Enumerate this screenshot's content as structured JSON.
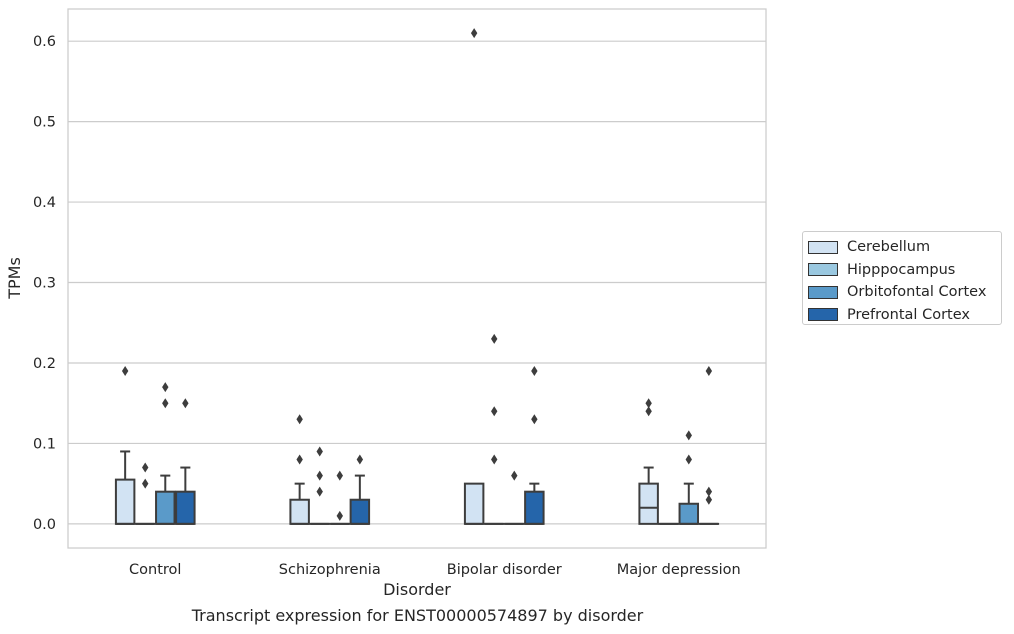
{
  "chart_data": {
    "type": "boxplot",
    "xlabel": "Disorder",
    "ylabel": "TPMs",
    "categories": [
      "Control",
      "Schizophrenia",
      "Bipolar disorder",
      "Major depression"
    ],
    "ylim": [
      -0.03,
      0.64
    ],
    "yticks": [
      0.0,
      0.1,
      0.2,
      0.3,
      0.4,
      0.5,
      0.6
    ],
    "ytick_labels": [
      "0.0",
      "0.1",
      "0.2",
      "0.3",
      "0.4",
      "0.5",
      "0.6"
    ],
    "grid": "horizontal",
    "legend_position": "right",
    "series": [
      {
        "name": "Cerebellum",
        "color": "#d2e3f3",
        "boxes": [
          {
            "min": 0,
            "q1": 0,
            "median": 0,
            "q3": 0.055,
            "max": 0.09,
            "outliers": [
              0.19
            ]
          },
          {
            "min": 0,
            "q1": 0,
            "median": 0,
            "q3": 0.03,
            "max": 0.05,
            "outliers": [
              0.08,
              0.13
            ]
          },
          {
            "min": 0,
            "q1": 0,
            "median": 0,
            "q3": 0.05,
            "max": 0.05,
            "outliers": [
              0.61
            ]
          },
          {
            "min": 0,
            "q1": 0,
            "median": 0.02,
            "q3": 0.05,
            "max": 0.07,
            "outliers": [
              0.14,
              0.15
            ]
          }
        ]
      },
      {
        "name": "Hipppocampus",
        "color": "#9ac8e0",
        "boxes": [
          {
            "min": 0,
            "q1": 0,
            "median": 0,
            "q3": 0,
            "max": 0,
            "outliers": [
              0.05,
              0.07
            ]
          },
          {
            "min": 0,
            "q1": 0,
            "median": 0,
            "q3": 0,
            "max": 0,
            "outliers": [
              0.04,
              0.06,
              0.09
            ]
          },
          {
            "min": 0,
            "q1": 0,
            "median": 0,
            "q3": 0,
            "max": 0,
            "outliers": [
              0.08,
              0.14,
              0.23
            ]
          },
          {
            "min": 0,
            "q1": 0,
            "median": 0,
            "q3": 0,
            "max": 0,
            "outliers": []
          }
        ]
      },
      {
        "name": "Orbitofontal Cortex",
        "color": "#5a9ac9",
        "boxes": [
          {
            "min": 0,
            "q1": 0,
            "median": 0,
            "q3": 0.04,
            "max": 0.06,
            "outliers": [
              0.15,
              0.17
            ]
          },
          {
            "min": 0,
            "q1": 0,
            "median": 0,
            "q3": 0,
            "max": 0,
            "outliers": [
              0.01,
              0.06
            ]
          },
          {
            "min": 0,
            "q1": 0,
            "median": 0,
            "q3": 0,
            "max": 0,
            "outliers": [
              0.06
            ]
          },
          {
            "min": 0,
            "q1": 0,
            "median": 0,
            "q3": 0.025,
            "max": 0.05,
            "outliers": [
              0.08,
              0.11
            ]
          }
        ]
      },
      {
        "name": "Prefrontal Cortex",
        "color": "#2565aa",
        "boxes": [
          {
            "min": 0,
            "q1": 0,
            "median": 0,
            "q3": 0.04,
            "max": 0.07,
            "outliers": [
              0.15
            ]
          },
          {
            "min": 0,
            "q1": 0,
            "median": 0,
            "q3": 0.03,
            "max": 0.06,
            "outliers": [
              0.08
            ]
          },
          {
            "min": 0,
            "q1": 0,
            "median": 0,
            "q3": 0.04,
            "max": 0.05,
            "outliers": [
              0.13,
              0.19
            ]
          },
          {
            "min": 0,
            "q1": 0,
            "median": 0,
            "q3": 0,
            "max": 0,
            "outliers": [
              0.03,
              0.04,
              0.19
            ]
          }
        ]
      }
    ]
  },
  "caption": "Transcript expression for ENST00000574897 by disorder"
}
